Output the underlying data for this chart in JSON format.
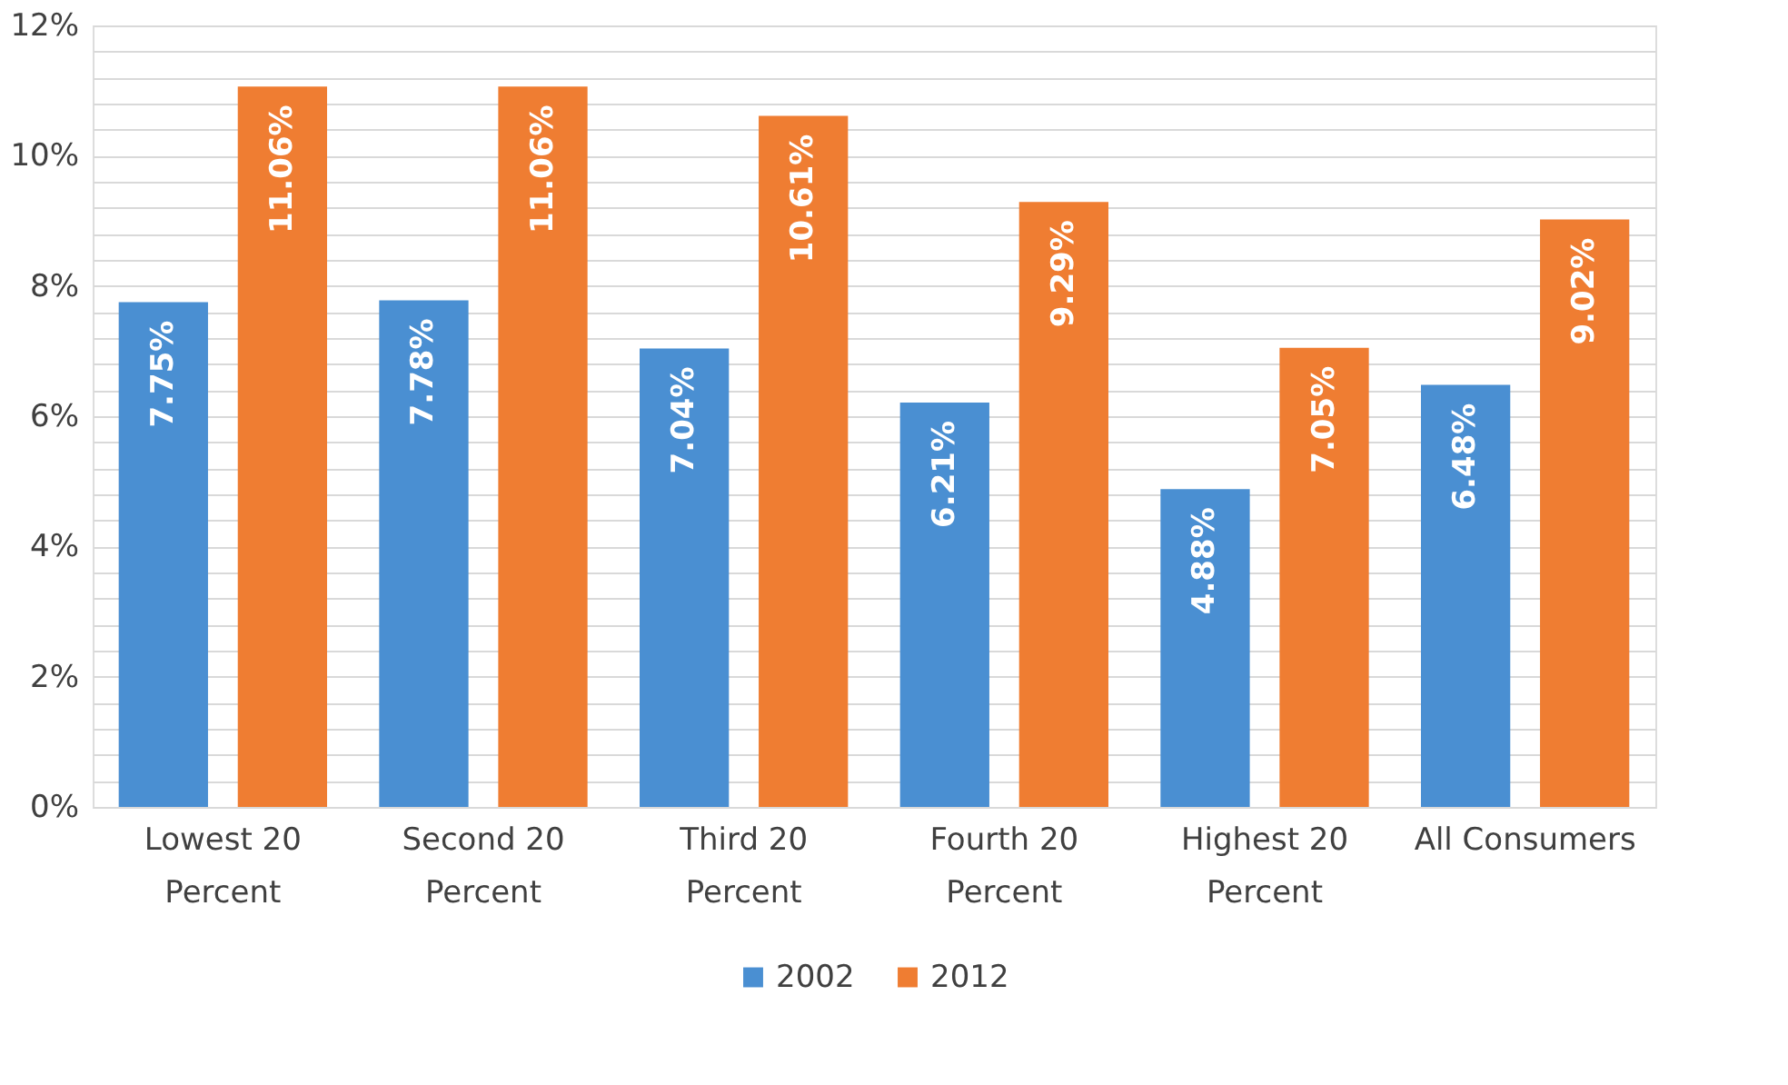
{
  "chart_data": {
    "type": "bar",
    "categories": [
      "Lowest 20\nPercent",
      "Second 20\nPercent",
      "Third 20\nPercent",
      "Fourth 20\nPercent",
      "Highest 20\nPercent",
      "All Consumers"
    ],
    "series": [
      {
        "name": "2002",
        "color": "#4a8fd2",
        "values": [
          7.75,
          7.78,
          7.04,
          6.21,
          4.88,
          6.48
        ],
        "value_labels": [
          "7.75%",
          "7.78%",
          "7.04%",
          "6.21%",
          "4.88%",
          "6.48%"
        ]
      },
      {
        "name": "2012",
        "color": "#ef7d32",
        "values": [
          11.06,
          11.06,
          10.61,
          9.29,
          7.05,
          9.02
        ],
        "value_labels": [
          "11.06%",
          "11.06%",
          "10.61%",
          "9.29%",
          "7.05%",
          "9.02%"
        ]
      }
    ],
    "ylim": [
      0,
      12
    ],
    "yticks": [
      {
        "value": 0,
        "label": "0%"
      },
      {
        "value": 0.4,
        "label": null
      },
      {
        "value": 0.8,
        "label": null
      },
      {
        "value": 1.2,
        "label": null
      },
      {
        "value": 1.6,
        "label": null
      },
      {
        "value": 2,
        "label": "2%"
      },
      {
        "value": 2.4,
        "label": null
      },
      {
        "value": 2.8,
        "label": null
      },
      {
        "value": 3.2,
        "label": null
      },
      {
        "value": 3.6,
        "label": null
      },
      {
        "value": 4,
        "label": "4%"
      },
      {
        "value": 4.4,
        "label": null
      },
      {
        "value": 4.8,
        "label": null
      },
      {
        "value": 5.2,
        "label": null
      },
      {
        "value": 5.6,
        "label": null
      },
      {
        "value": 6,
        "label": "6%"
      },
      {
        "value": 6.4,
        "label": null
      },
      {
        "value": 6.8,
        "label": null
      },
      {
        "value": 7.2,
        "label": null
      },
      {
        "value": 7.6,
        "label": null
      },
      {
        "value": 8,
        "label": "8%"
      },
      {
        "value": 8.4,
        "label": null
      },
      {
        "value": 8.8,
        "label": null
      },
      {
        "value": 9.2,
        "label": null
      },
      {
        "value": 9.6,
        "label": null
      },
      {
        "value": 10,
        "label": "10%"
      },
      {
        "value": 10.4,
        "label": null
      },
      {
        "value": 10.8,
        "label": null
      },
      {
        "value": 11.2,
        "label": null
      },
      {
        "value": 11.6,
        "label": null
      },
      {
        "value": 12,
        "label": "12%"
      }
    ],
    "grid": true,
    "legend": "bottom"
  }
}
